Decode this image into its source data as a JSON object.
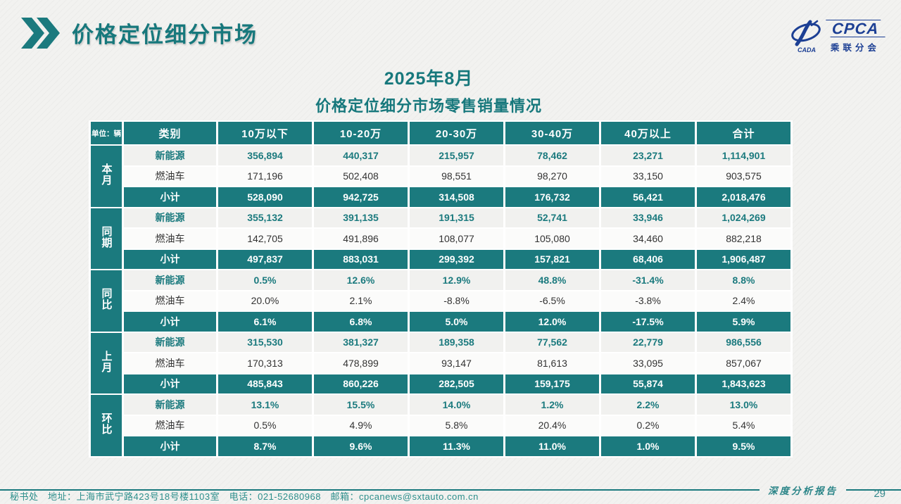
{
  "page": {
    "title": "价格定位细分市场",
    "subtitle_line1": "2025年8月",
    "subtitle_line2": "价格定位细分市场零售销量情况"
  },
  "logo": {
    "acronym": "CPCA",
    "swoosh_text": "CADA",
    "name_cn": "乘联分会",
    "brand_color": "#1c3f94"
  },
  "colors": {
    "accent_teal": "#1b7a7e",
    "nev_row_bg": "#f1f1ef",
    "ice_row_bg": "#fbfbfa"
  },
  "table": {
    "unit_label": "单位：辆",
    "columns": [
      "类别",
      "10万以下",
      "10-20万",
      "20-30万",
      "30-40万",
      "40万以上",
      "合计"
    ],
    "groups": [
      {
        "label": "本月",
        "rows": [
          {
            "category": "新能源",
            "type": "nev",
            "values": [
              "356,894",
              "440,317",
              "215,957",
              "78,462",
              "23,271",
              "1,114,901"
            ]
          },
          {
            "category": "燃油车",
            "type": "ice",
            "values": [
              "171,196",
              "502,408",
              "98,551",
              "98,270",
              "33,150",
              "903,575"
            ]
          },
          {
            "category": "小计",
            "type": "sub",
            "values": [
              "528,090",
              "942,725",
              "314,508",
              "176,732",
              "56,421",
              "2,018,476"
            ]
          }
        ]
      },
      {
        "label": "同期",
        "rows": [
          {
            "category": "新能源",
            "type": "nev",
            "values": [
              "355,132",
              "391,135",
              "191,315",
              "52,741",
              "33,946",
              "1,024,269"
            ]
          },
          {
            "category": "燃油车",
            "type": "ice",
            "values": [
              "142,705",
              "491,896",
              "108,077",
              "105,080",
              "34,460",
              "882,218"
            ]
          },
          {
            "category": "小计",
            "type": "sub",
            "values": [
              "497,837",
              "883,031",
              "299,392",
              "157,821",
              "68,406",
              "1,906,487"
            ]
          }
        ]
      },
      {
        "label": "同比",
        "rows": [
          {
            "category": "新能源",
            "type": "nev",
            "values": [
              "0.5%",
              "12.6%",
              "12.9%",
              "48.8%",
              "-31.4%",
              "8.8%"
            ]
          },
          {
            "category": "燃油车",
            "type": "ice",
            "values": [
              "20.0%",
              "2.1%",
              "-8.8%",
              "-6.5%",
              "-3.8%",
              "2.4%"
            ]
          },
          {
            "category": "小计",
            "type": "sub",
            "values": [
              "6.1%",
              "6.8%",
              "5.0%",
              "12.0%",
              "-17.5%",
              "5.9%"
            ]
          }
        ]
      },
      {
        "label": "上月",
        "rows": [
          {
            "category": "新能源",
            "type": "nev",
            "values": [
              "315,530",
              "381,327",
              "189,358",
              "77,562",
              "22,779",
              "986,556"
            ]
          },
          {
            "category": "燃油车",
            "type": "ice",
            "values": [
              "170,313",
              "478,899",
              "93,147",
              "81,613",
              "33,095",
              "857,067"
            ]
          },
          {
            "category": "小计",
            "type": "sub",
            "values": [
              "485,843",
              "860,226",
              "282,505",
              "159,175",
              "55,874",
              "1,843,623"
            ]
          }
        ]
      },
      {
        "label": "环比",
        "rows": [
          {
            "category": "新能源",
            "type": "nev",
            "values": [
              "13.1%",
              "15.5%",
              "14.0%",
              "1.2%",
              "2.2%",
              "13.0%"
            ]
          },
          {
            "category": "燃油车",
            "type": "ice",
            "values": [
              "0.5%",
              "4.9%",
              "5.8%",
              "20.4%",
              "0.2%",
              "5.4%"
            ]
          },
          {
            "category": "小计",
            "type": "sub",
            "values": [
              "8.7%",
              "9.6%",
              "11.3%",
              "11.0%",
              "1.0%",
              "9.5%"
            ]
          }
        ]
      }
    ]
  },
  "footer": {
    "left_text": "秘书处　地址：上海市武宁路423号18号楼1103室　电话：021-52680968　邮箱：cpcanews@sxtauto.com.cn",
    "report_label": "深度分析报告",
    "page_number": "29"
  }
}
